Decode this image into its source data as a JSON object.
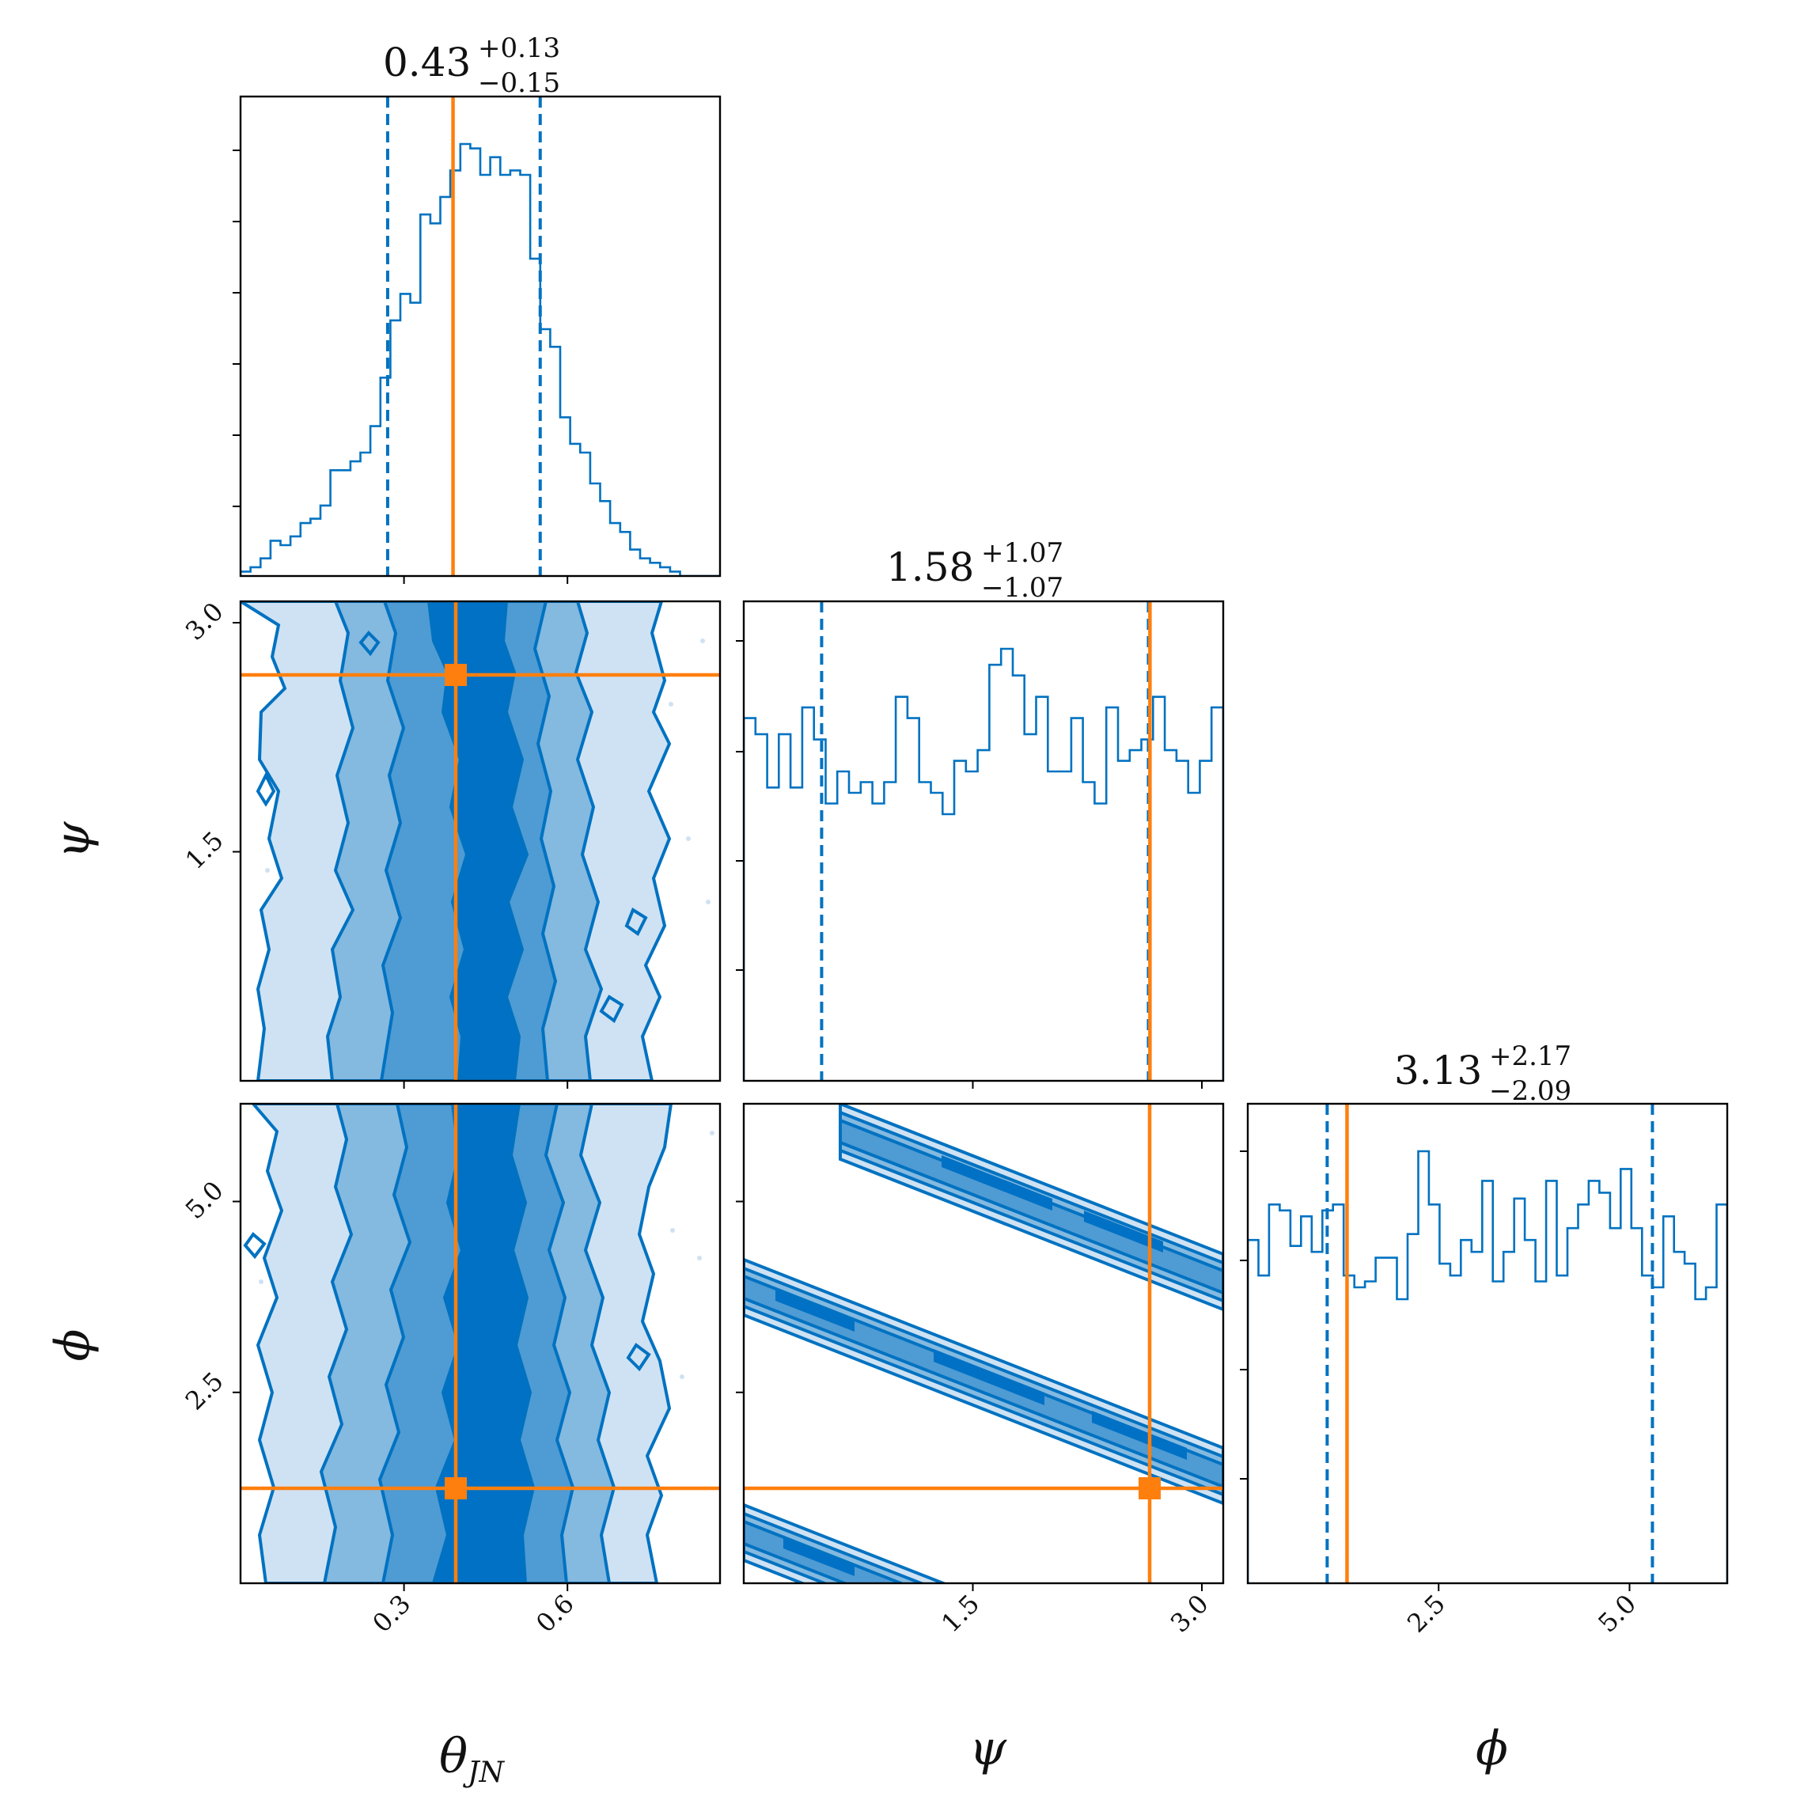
{
  "chart_data": {
    "type": "corner",
    "parameters": [
      {
        "key": "theta_jn",
        "label": "θ",
        "label_sub": "JN",
        "range": [
          0.0,
          0.88
        ],
        "ticks": [
          0.3,
          0.6
        ],
        "tick_labels": [
          "0.3",
          "0.6"
        ]
      },
      {
        "key": "psi",
        "label": "ψ",
        "label_sub": "",
        "range": [
          0.0,
          3.14
        ],
        "ticks": [
          1.5,
          3.0
        ],
        "tick_labels": [
          "1.5",
          "3.0"
        ]
      },
      {
        "key": "phi",
        "label": "ϕ",
        "label_sub": "",
        "range": [
          0.0,
          6.28
        ],
        "ticks": [
          2.5,
          5.0
        ],
        "tick_labels": [
          "2.5",
          "5.0"
        ]
      }
    ],
    "titles": [
      {
        "median": "0.43",
        "plus": "+0.13",
        "minus": "−0.15"
      },
      {
        "median": "1.58",
        "plus": "+1.07",
        "minus": "−1.07"
      },
      {
        "median": "3.13",
        "plus": "+2.17",
        "minus": "−2.09"
      }
    ],
    "quantiles": [
      [
        0.27,
        0.55
      ],
      [
        0.51,
        2.65
      ],
      [
        1.04,
        5.3
      ]
    ],
    "truths": [
      0.39,
      2.66,
      1.3
    ],
    "histograms": [
      {
        "param": "theta_jn",
        "range": [
          0.0,
          0.88
        ],
        "counts": [
          1,
          2,
          4,
          8,
          7,
          9,
          12,
          13,
          16,
          24,
          24,
          26,
          28,
          34,
          45,
          58,
          64,
          62,
          82,
          80,
          86,
          92,
          98,
          97,
          91,
          95,
          91,
          92,
          91,
          72,
          56,
          52,
          36,
          30,
          28,
          21,
          17,
          12,
          10,
          6,
          4,
          3,
          2,
          1,
          0,
          0,
          0,
          0
        ]
      },
      {
        "param": "psi",
        "range": [
          0.0,
          3.14
        ],
        "counts": [
          68,
          65,
          55,
          65,
          55,
          70,
          64,
          52,
          58,
          54,
          56,
          52,
          56,
          72,
          68,
          56,
          54,
          50,
          60,
          58,
          62,
          78,
          81,
          76,
          65,
          72,
          58,
          58,
          68,
          56,
          52,
          70,
          60,
          62,
          64,
          72,
          62,
          60,
          54,
          60,
          70
        ]
      },
      {
        "param": "phi",
        "range": [
          0.0,
          6.28
        ],
        "counts": [
          58,
          52,
          64,
          63,
          57,
          62,
          56,
          63,
          64,
          52,
          50,
          51,
          55,
          55,
          48,
          59,
          73,
          64,
          54,
          52,
          58,
          56,
          68,
          51,
          56,
          65,
          58,
          51,
          68,
          52,
          60,
          64,
          68,
          66,
          60,
          70,
          60,
          52,
          50,
          62,
          56,
          54,
          48,
          50,
          64
        ]
      }
    ],
    "contours_2d": [
      {
        "x": "theta_jn",
        "y": "psi",
        "levels": [
          "1σ",
          "2σ",
          "3σ"
        ]
      },
      {
        "x": "theta_jn",
        "y": "phi",
        "levels": [
          "1σ",
          "2σ",
          "3σ"
        ]
      },
      {
        "x": "psi",
        "y": "phi",
        "levels": [
          "1σ",
          "2σ",
          "3σ"
        ]
      }
    ],
    "colors": {
      "posterior": "#0072c1",
      "truth": "#ff7f0e",
      "fill_levels": [
        "#cfe2f3",
        "#84b9e0",
        "#4f9bd3",
        "#0071c5"
      ]
    }
  }
}
